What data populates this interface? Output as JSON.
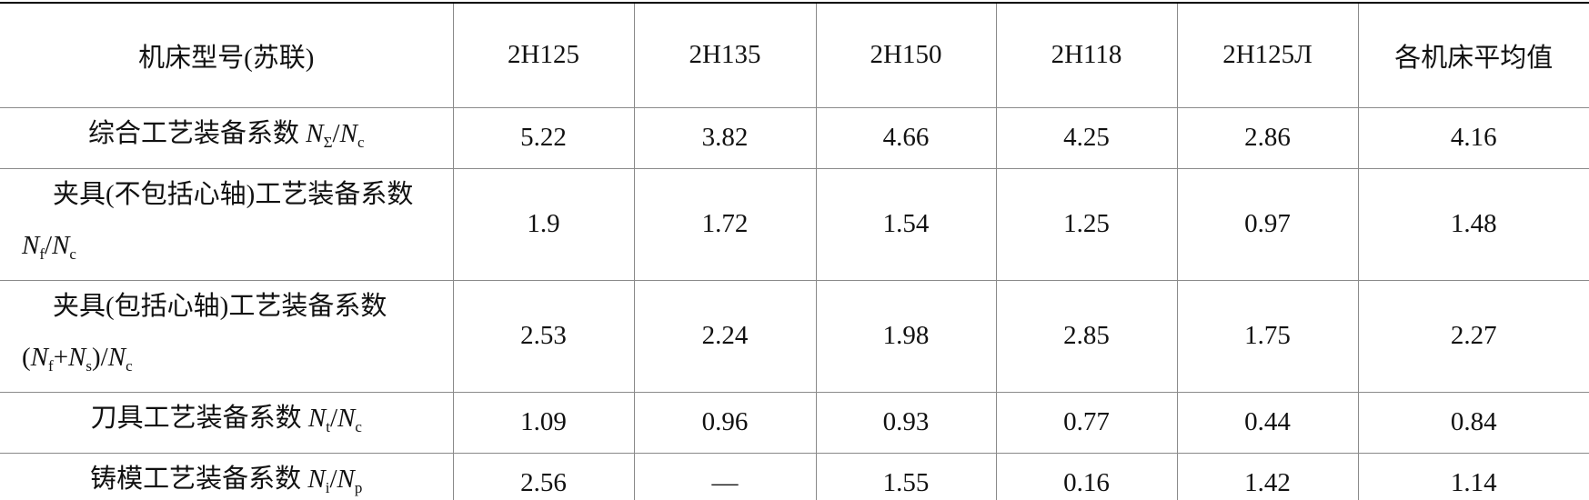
{
  "table": {
    "header": [
      "机床型号(苏联)",
      "2H125",
      "2H135",
      "2H150",
      "2H118",
      "2H125Л",
      "各机床平均值"
    ],
    "rows": [
      {
        "label": [
          {
            "text": "综合工艺装备系数 "
          },
          {
            "italic": "N",
            "sub": "Σ"
          },
          {
            "text": "/"
          },
          {
            "italic": "N",
            "sub": "c"
          }
        ],
        "values": [
          "5.22",
          "3.82",
          "4.66",
          "4.25",
          "2.86",
          "4.16"
        ]
      },
      {
        "label": [
          {
            "text": "夹具(不包括心轴)工艺装备系数 "
          },
          {
            "italic": "N",
            "sub": "f"
          },
          {
            "text": "/"
          },
          {
            "italic": "N",
            "sub": "c"
          }
        ],
        "values": [
          "1.9",
          "1.72",
          "1.54",
          "1.25",
          "0.97",
          "1.48"
        ]
      },
      {
        "label": [
          {
            "text": "夹具(包括心轴)工艺装备系数("
          },
          {
            "italic": "N",
            "sub": "f"
          },
          {
            "text": "+"
          },
          {
            "italic": "N",
            "sub": "s"
          },
          {
            "text": ")/"
          },
          {
            "italic": "N",
            "sub": "c"
          }
        ],
        "values": [
          "2.53",
          "2.24",
          "1.98",
          "2.85",
          "1.75",
          "2.27"
        ]
      },
      {
        "label": [
          {
            "text": "刀具工艺装备系数 "
          },
          {
            "italic": "N",
            "sub": "t"
          },
          {
            "text": "/"
          },
          {
            "italic": "N",
            "sub": "c"
          }
        ],
        "values": [
          "1.09",
          "0.96",
          "0.93",
          "0.77",
          "0.44",
          "0.84"
        ]
      },
      {
        "label": [
          {
            "text": "铸模工艺装备系数 "
          },
          {
            "italic": "N",
            "sub": "i"
          },
          {
            "text": "/"
          },
          {
            "italic": "N",
            "sub": "p"
          }
        ],
        "values": [
          "2.56",
          "—",
          "1.55",
          "0.16",
          "1.42",
          "1.14"
        ]
      }
    ]
  }
}
